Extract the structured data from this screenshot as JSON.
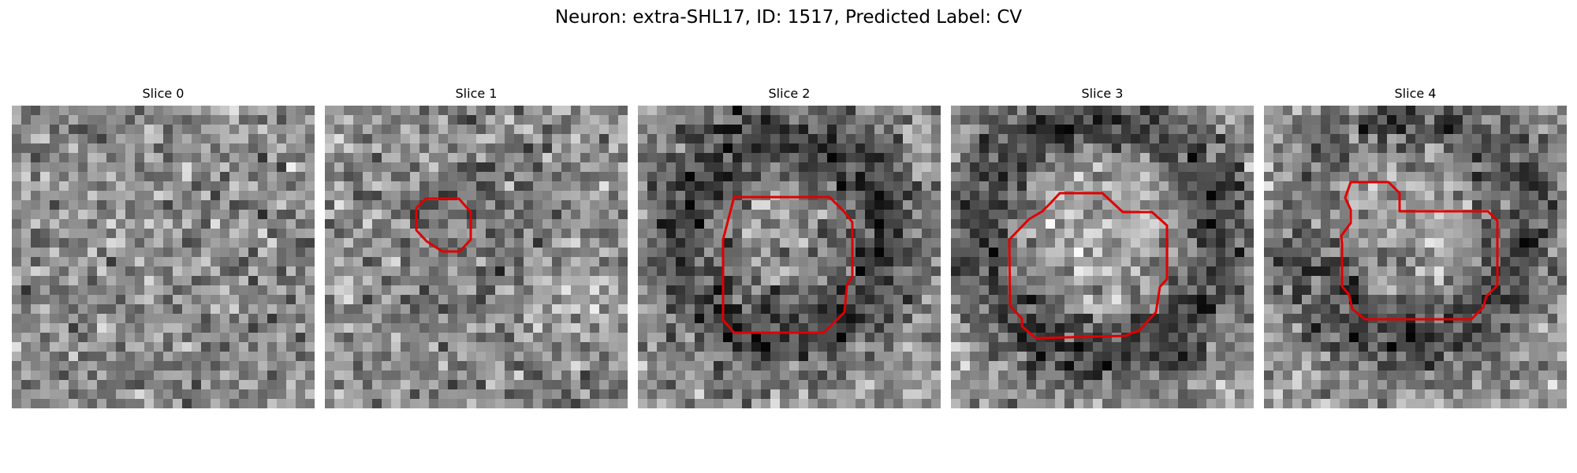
{
  "figure": {
    "title": "Neuron: extra-SHL17, ID: 1517, Predicted Label: CV"
  },
  "contour_color": "#e00000",
  "panels": [
    {
      "title": "Slice 0",
      "has_contour": false
    },
    {
      "title": "Slice 1",
      "has_contour": true
    },
    {
      "title": "Slice 2",
      "has_contour": true
    },
    {
      "title": "Slice 3",
      "has_contour": true
    },
    {
      "title": "Slice 4",
      "has_contour": true
    }
  ]
}
